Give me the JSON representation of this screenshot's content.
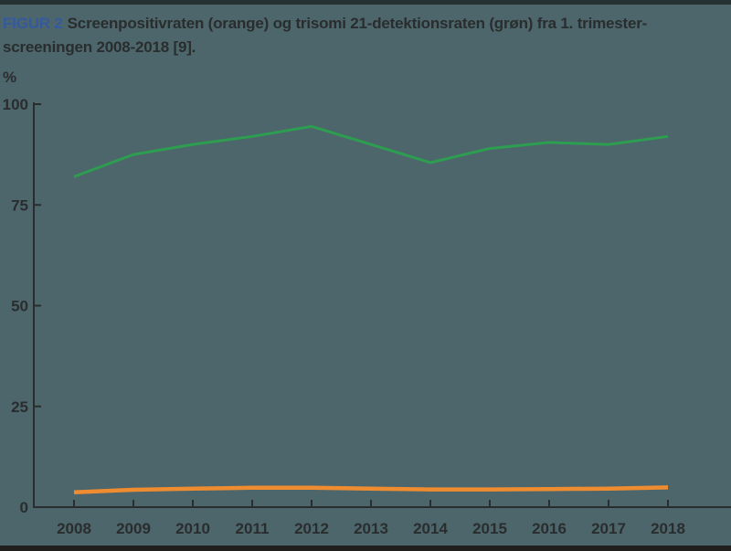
{
  "page": {
    "background_color": "#4c666c",
    "top_border_color": "#263134",
    "bottom_border_color": "#211f1e"
  },
  "title": {
    "tag": "FIGUR 2",
    "tag_color": "#35599e",
    "line1": "Screenpositivraten (orange) og trisomi 21-detektionsraten (grøn) fra 1. trimester-",
    "line2": "screeningen 2008-2018 [9]."
  },
  "chart_data": {
    "type": "line",
    "title": "Screenpositivraten (orange) og trisomi 21-detektionsraten (grøn) fra 1. trimester-screeningen 2008-2018 [9].",
    "xlabel": "",
    "ylabel": "%",
    "categories": [
      "2008",
      "2009",
      "2010",
      "2011",
      "2012",
      "2013",
      "2014",
      "2015",
      "2016",
      "2017",
      "2018"
    ],
    "series": [
      {
        "name": "Screenpositivraten",
        "color": "#ef8c2f",
        "stroke_width": 4.5,
        "values": [
          3.7,
          4.3,
          4.6,
          4.8,
          4.8,
          4.6,
          4.4,
          4.4,
          4.5,
          4.6,
          4.9
        ]
      },
      {
        "name": "Trisomi 21-detektionsraten",
        "color": "#2d9e50",
        "stroke_width": 3,
        "values": [
          82,
          87.5,
          90,
          92,
          94.5,
          90,
          85.5,
          89,
          90.5,
          90,
          92
        ]
      }
    ],
    "y_ticks": [
      0,
      25,
      50,
      75,
      100
    ],
    "ylim": [
      0,
      100
    ],
    "grid": false,
    "legend_position": "none",
    "axis_color": "#2a2d2e"
  }
}
